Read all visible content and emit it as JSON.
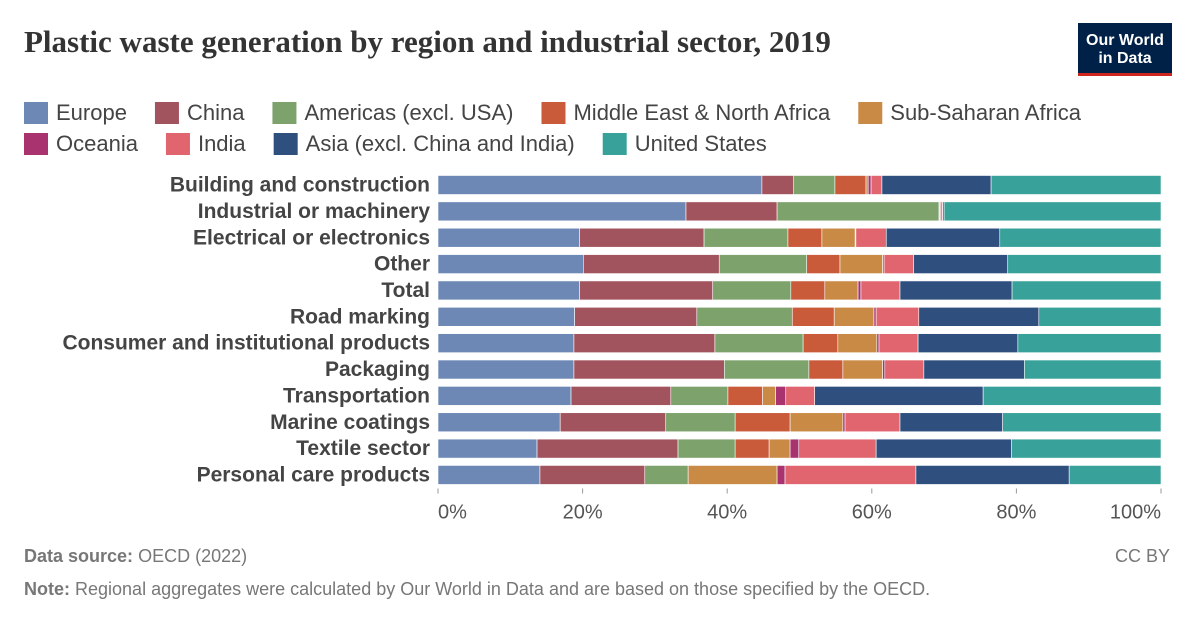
{
  "chart_data": {
    "type": "stacked-bar-horizontal",
    "title": "Plastic waste generation by region and industrial sector, 2019",
    "logo": [
      "Our World",
      "in Data"
    ],
    "categories": [
      "Building and construction",
      "Industrial or machinery",
      "Electrical or electronics",
      "Other",
      "Total",
      "Road marking",
      "Consumer and institutional products",
      "Packaging",
      "Transportation",
      "Marine coatings",
      "Textile sector",
      "Personal care products"
    ],
    "series": [
      {
        "name": "Europe",
        "color": "#6d88b5",
        "values": [
          44.8,
          34.3,
          19.6,
          20.1,
          19.6,
          18.9,
          18.8,
          18.8,
          18.4,
          16.9,
          13.7,
          14.1
        ]
      },
      {
        "name": "China",
        "color": "#a2545e",
        "values": [
          4.4,
          12.6,
          17.2,
          18.8,
          18.4,
          16.9,
          19.5,
          20.8,
          13.8,
          14.6,
          19.5,
          14.5
        ]
      },
      {
        "name": "Americas (excl. USA)",
        "color": "#7da26b",
        "values": [
          5.7,
          22.4,
          11.6,
          12.1,
          10.8,
          13.2,
          12.2,
          11.7,
          7.9,
          9.6,
          7.9,
          6.0
        ]
      },
      {
        "name": "Middle East & North Africa",
        "color": "#c95a3a",
        "values": [
          4.3,
          0.1,
          4.7,
          4.6,
          4.7,
          5.8,
          4.8,
          4.7,
          4.8,
          7.6,
          4.7,
          0
        ]
      },
      {
        "name": "Sub-Saharan Africa",
        "color": "#c98a45",
        "values": [
          0.3,
          0.1,
          4.6,
          5.9,
          4.6,
          5.5,
          5.4,
          5.5,
          1.8,
          7.3,
          2.9,
          12.3
        ]
      },
      {
        "name": "Oceania",
        "color": "#a9336e",
        "values": [
          0.4,
          0.2,
          0.1,
          0.2,
          0.4,
          0.3,
          0.3,
          0.3,
          1.4,
          0.3,
          1.2,
          1.1
        ]
      },
      {
        "name": "India",
        "color": "#e0656f",
        "values": [
          1.5,
          0.1,
          4.2,
          4.1,
          5.4,
          5.9,
          5.4,
          5.4,
          4.0,
          7.6,
          10.7,
          18.1
        ]
      },
      {
        "name": "Asia (excl. China and India)",
        "color": "#2f4f7f",
        "values": [
          15.1,
          0.2,
          15.7,
          13.0,
          15.5,
          16.6,
          13.8,
          13.9,
          23.3,
          14.2,
          18.7,
          21.2
        ]
      },
      {
        "name": "United States",
        "color": "#38a29a",
        "values": [
          23.5,
          30.0,
          22.3,
          21.2,
          20.6,
          16.9,
          19.8,
          18.9,
          24.6,
          21.9,
          20.7,
          12.7
        ]
      }
    ],
    "xlim": [
      0,
      100
    ],
    "xticks": [
      {
        "value": 0,
        "label": "0%"
      },
      {
        "value": 20,
        "label": "20%"
      },
      {
        "value": 40,
        "label": "40%"
      },
      {
        "value": 60,
        "label": "60%"
      },
      {
        "value": 80,
        "label": "80%"
      },
      {
        "value": 100,
        "label": "100%"
      }
    ],
    "grid": false,
    "source_label": "Data source:",
    "source": "OECD (2022)",
    "license": "CC BY",
    "note_label": "Note:",
    "note": "Regional aggregates were calculated by Our World in Data and are based on those specified by the OECD."
  }
}
